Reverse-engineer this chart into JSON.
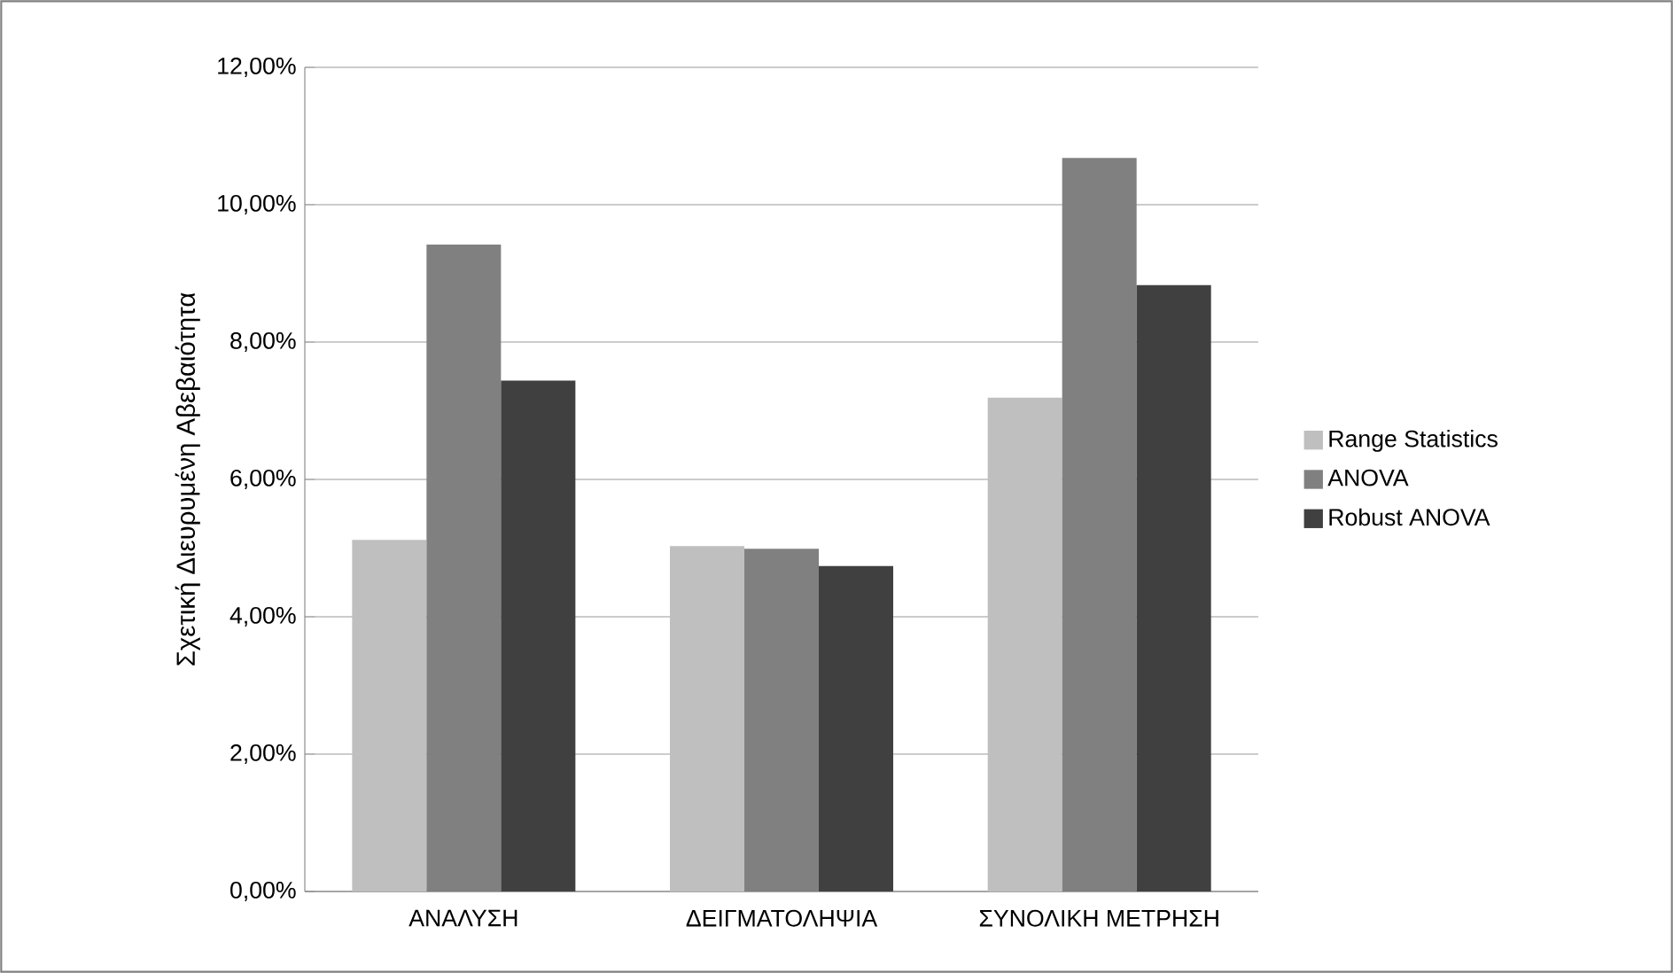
{
  "chart_data": {
    "type": "bar",
    "ylabel": "Σχετική Διευρυμένη Αβεβαιότητα",
    "categories": [
      "ΑΝΑΛΥΣΗ",
      "ΔΕΙΓΜΑΤΟΛΗΨΙΑ",
      "ΣΥΝΟΛΙΚΗ ΜΕΤΡΗΣΗ"
    ],
    "series": [
      {
        "name": "Range Statistics",
        "color": "#bfbfbf",
        "values": [
          5.12,
          5.03,
          7.19
        ]
      },
      {
        "name": "ANOVA",
        "color": "#808080",
        "values": [
          9.42,
          4.99,
          10.68
        ]
      },
      {
        "name": "Robust ANOVA",
        "color": "#404040",
        "values": [
          7.44,
          4.74,
          8.83
        ]
      }
    ],
    "ylim": [
      0,
      12
    ],
    "yticks": [
      {
        "value": 0,
        "label": "0,00%"
      },
      {
        "value": 2,
        "label": "2,00%"
      },
      {
        "value": 4,
        "label": "4,00%"
      },
      {
        "value": 6,
        "label": "6,00%"
      },
      {
        "value": 8,
        "label": "8,00%"
      },
      {
        "value": 10,
        "label": "10,00%"
      },
      {
        "value": 12,
        "label": "12,00%"
      }
    ],
    "grid": "y",
    "legend": "right"
  }
}
